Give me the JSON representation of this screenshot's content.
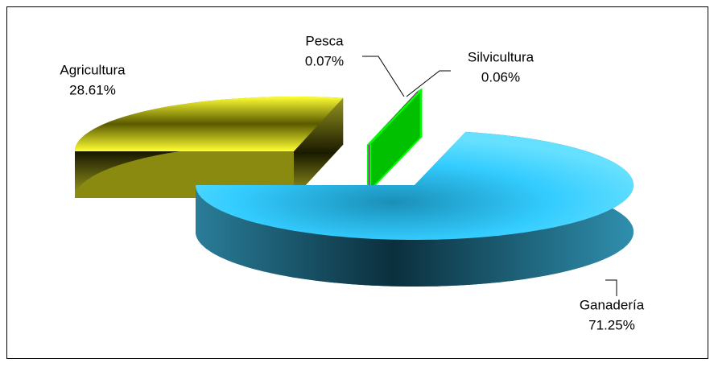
{
  "chart_data": {
    "type": "pie3d",
    "categories": [
      "Agricultura",
      "Pesca",
      "Silvicultura",
      "Ganadería"
    ],
    "values": [
      28.61,
      0.07,
      0.06,
      71.25
    ],
    "value_labels": [
      "28.61%",
      "0.07%",
      "0.06%",
      "71.25%"
    ],
    "colors": [
      "#ffff00",
      "#800080",
      "#00ff00",
      "#33ccff"
    ],
    "side_colors": [
      "#8a8a10",
      "#600060",
      "#00c000",
      "#1f6f8a"
    ]
  }
}
